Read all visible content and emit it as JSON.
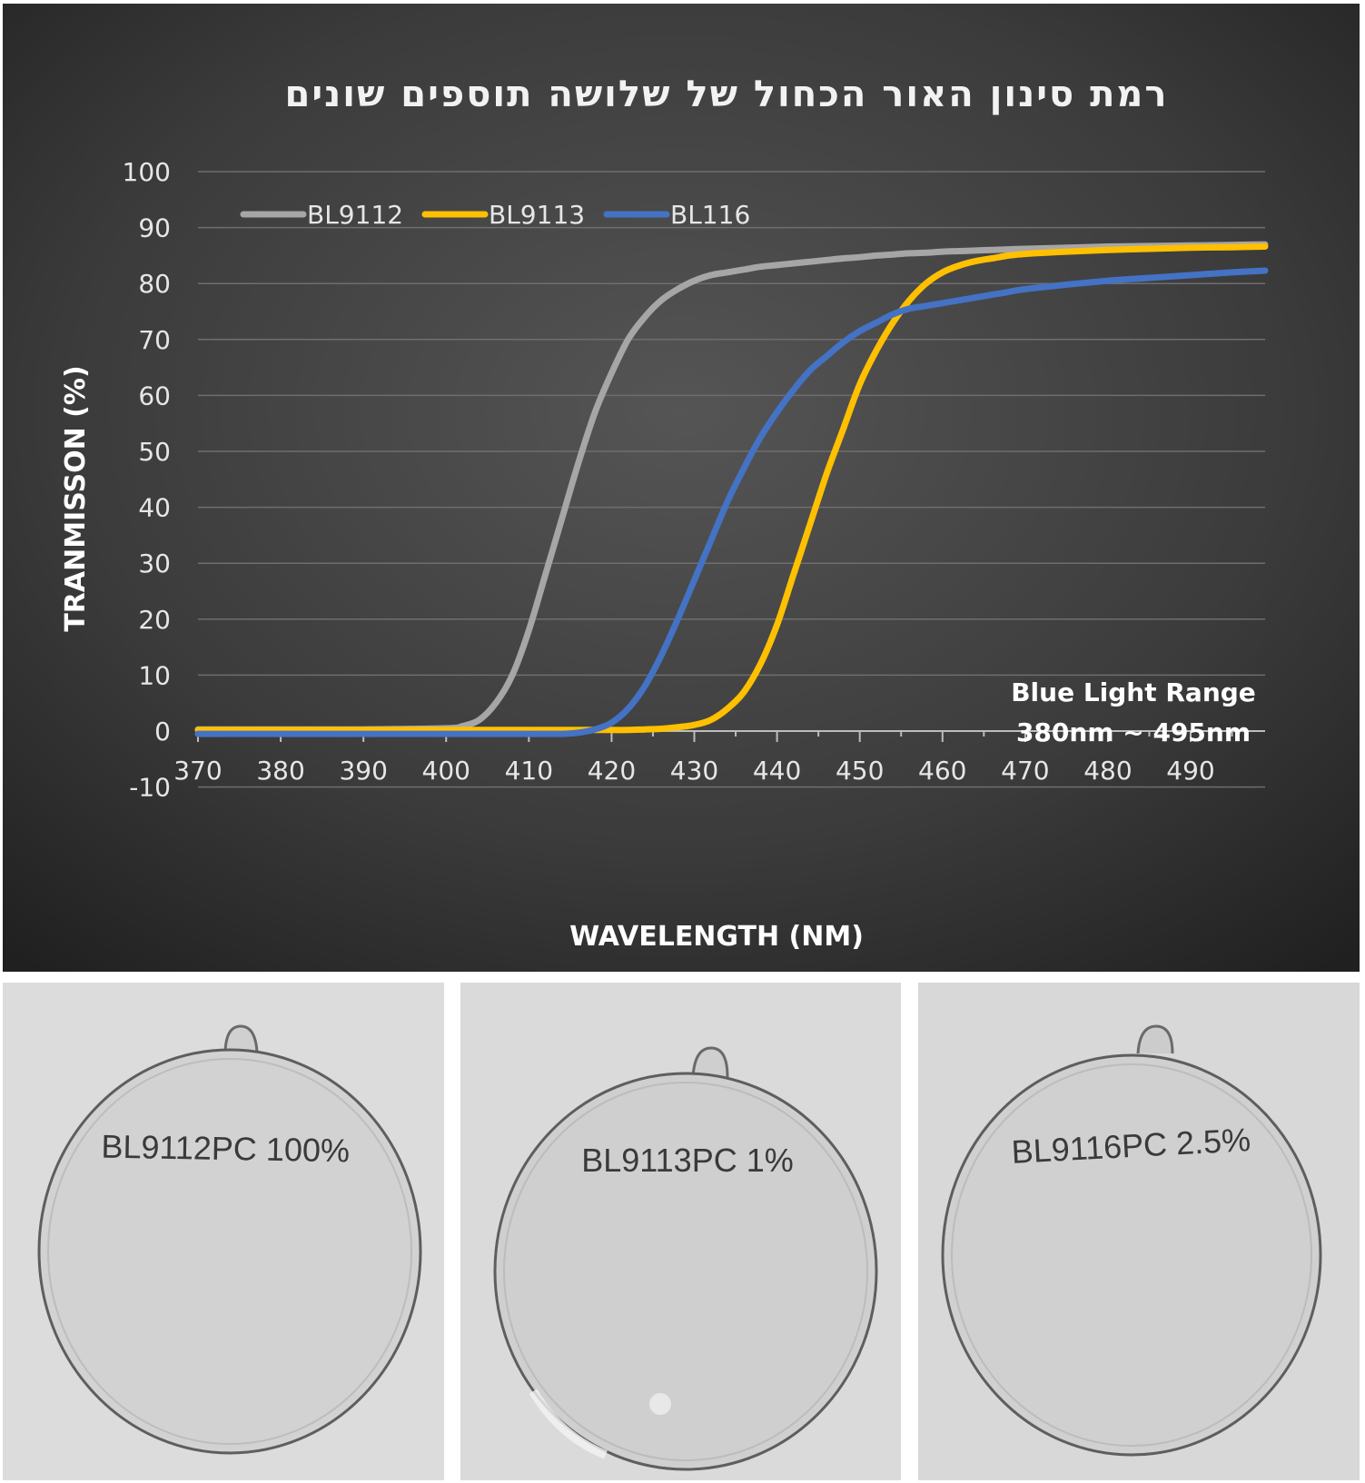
{
  "chart_data": {
    "type": "line",
    "title": "רמת סינון האור הכחול של שלושה תוספים שונים",
    "xlabel": "WAVELENGTH (NM)",
    "ylabel": "TRANMISSON (%)",
    "xlim": [
      370,
      499
    ],
    "ylim": [
      -10,
      100
    ],
    "x_ticks": [
      370,
      380,
      390,
      400,
      410,
      420,
      430,
      440,
      450,
      460,
      470,
      480,
      490
    ],
    "y_ticks": [
      -10,
      0,
      10,
      20,
      30,
      40,
      50,
      60,
      70,
      80,
      90,
      100
    ],
    "grid": true,
    "legend_position": "top-left",
    "annotation": [
      "Blue Light Range",
      "380nm ~ 495nm"
    ],
    "x": [
      370,
      380,
      390,
      400,
      402,
      404,
      406,
      408,
      410,
      412,
      414,
      416,
      418,
      420,
      422,
      424,
      426,
      428,
      430,
      432,
      434,
      436,
      438,
      440,
      442,
      444,
      446,
      448,
      450,
      452,
      454,
      456,
      458,
      460,
      462,
      464,
      466,
      468,
      470,
      475,
      480,
      485,
      490,
      495,
      499
    ],
    "series": [
      {
        "name": "BL9112",
        "color": "#a6a6a6",
        "values": [
          0.3,
          0.3,
          0.3,
          0.5,
          0.9,
          2,
          5,
          10,
          18,
          28,
          38,
          48,
          57,
          64,
          70,
          74,
          77,
          79,
          80.5,
          81.5,
          82,
          82.5,
          83,
          83.3,
          83.6,
          83.9,
          84.2,
          84.5,
          84.7,
          85,
          85.2,
          85.4,
          85.5,
          85.7,
          85.8,
          85.9,
          86,
          86.1,
          86.2,
          86.4,
          86.6,
          86.7,
          86.8,
          86.9,
          87
        ]
      },
      {
        "name": "BL9113",
        "color": "#ffc000",
        "values": [
          0.2,
          0.2,
          0.2,
          0.2,
          0.2,
          0.2,
          0.2,
          0.2,
          0.2,
          0.2,
          0.2,
          0.2,
          0.2,
          0.2,
          0.2,
          0.3,
          0.4,
          0.7,
          1.1,
          2,
          4,
          7,
          12,
          19,
          28,
          37,
          46,
          54,
          62,
          68,
          73,
          77,
          80,
          82,
          83.2,
          84,
          84.5,
          85,
          85.3,
          85.7,
          86,
          86.2,
          86.4,
          86.5,
          86.6
        ]
      },
      {
        "name": "BL116",
        "color": "#4472c4",
        "values": [
          -0.5,
          -0.5,
          -0.5,
          -0.5,
          -0.5,
          -0.5,
          -0.5,
          -0.5,
          -0.5,
          -0.5,
          -0.5,
          -0.3,
          0.3,
          1.5,
          4,
          8,
          13.5,
          20,
          27,
          34,
          41,
          47,
          52.5,
          57,
          61,
          64.5,
          67,
          69.5,
          71.5,
          73,
          74.5,
          75.5,
          76,
          76.5,
          77,
          77.5,
          78,
          78.5,
          79,
          79.8,
          80.5,
          81,
          81.5,
          82,
          82.3
        ]
      }
    ]
  },
  "photos": [
    {
      "label": "BL9112PC 100%"
    },
    {
      "label": "BL9113PC 1%"
    },
    {
      "label": "BL9116PC 2.5%"
    }
  ]
}
